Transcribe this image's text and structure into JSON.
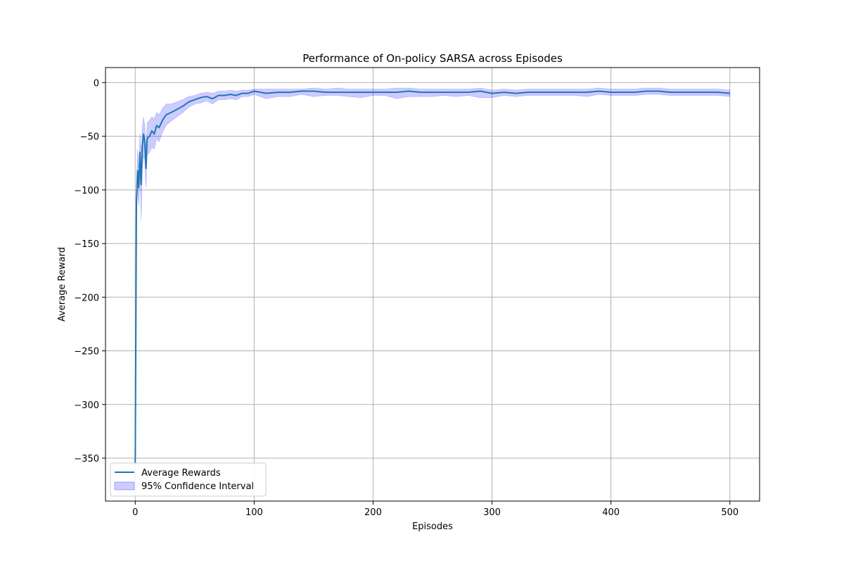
{
  "chart_data": {
    "type": "line",
    "title": "Performance of On-policy SARSA across Episodes",
    "xlabel": "Episodes",
    "ylabel": "Average Reward",
    "xlim": [
      -25,
      525
    ],
    "ylim": [
      -390,
      14
    ],
    "xticks": [
      0,
      100,
      200,
      300,
      400,
      500
    ],
    "yticks": [
      0,
      -50,
      -100,
      -150,
      -200,
      -250,
      -300,
      -350
    ],
    "ytick_labels": [
      "0",
      "−50",
      "−100",
      "−150",
      "−200",
      "−250",
      "−300",
      "−350"
    ],
    "grid": true,
    "legend_position": "lower-left",
    "series": [
      {
        "name": "Average Rewards",
        "color": "#1f77b4",
        "x": [
          0,
          1,
          2,
          3,
          4,
          5,
          6,
          7,
          8,
          9,
          10,
          12,
          14,
          16,
          18,
          20,
          23,
          26,
          30,
          35,
          40,
          45,
          50,
          55,
          60,
          65,
          70,
          75,
          80,
          85,
          90,
          95,
          100,
          110,
          120,
          130,
          140,
          150,
          160,
          170,
          180,
          190,
          200,
          210,
          220,
          230,
          240,
          250,
          260,
          270,
          280,
          290,
          300,
          310,
          320,
          330,
          340,
          350,
          360,
          370,
          380,
          390,
          400,
          410,
          420,
          430,
          440,
          450,
          460,
          470,
          480,
          490,
          500
        ],
        "values": [
          -355,
          -110,
          -82,
          -98,
          -65,
          -95,
          -60,
          -48,
          -55,
          -80,
          -52,
          -50,
          -45,
          -48,
          -40,
          -42,
          -35,
          -30,
          -28,
          -25,
          -22,
          -18,
          -16,
          -14,
          -13,
          -15,
          -12,
          -12,
          -11,
          -12,
          -10,
          -10,
          -8,
          -10,
          -9,
          -9,
          -8,
          -8,
          -9,
          -9,
          -9,
          -9,
          -9,
          -9,
          -9,
          -8,
          -9,
          -9,
          -9,
          -9,
          -9,
          -8,
          -10,
          -9,
          -10,
          -9,
          -9,
          -9,
          -9,
          -9,
          -9,
          -8,
          -9,
          -9,
          -9,
          -8,
          -8,
          -9,
          -9,
          -9,
          -9,
          -9,
          -10
        ]
      },
      {
        "name": "95% Confidence Interval",
        "color": "#0000ff",
        "type": "band",
        "x": [
          0,
          1,
          2,
          3,
          4,
          5,
          6,
          7,
          8,
          9,
          10,
          12,
          14,
          16,
          18,
          20,
          23,
          26,
          30,
          35,
          40,
          45,
          50,
          55,
          60,
          65,
          70,
          75,
          80,
          85,
          90,
          95,
          100,
          110,
          120,
          130,
          140,
          150,
          160,
          170,
          180,
          190,
          200,
          210,
          220,
          230,
          240,
          250,
          260,
          270,
          280,
          290,
          300,
          310,
          320,
          330,
          340,
          350,
          360,
          370,
          380,
          390,
          400,
          410,
          420,
          430,
          440,
          450,
          460,
          470,
          480,
          490,
          500
        ],
        "lower": [
          -357,
          -125,
          -100,
          -115,
          -85,
          -128,
          -80,
          -68,
          -72,
          -98,
          -68,
          -65,
          -60,
          -62,
          -52,
          -55,
          -46,
          -40,
          -36,
          -32,
          -28,
          -23,
          -20,
          -19,
          -17,
          -20,
          -16,
          -16,
          -15,
          -16,
          -13,
          -13,
          -11,
          -15,
          -13,
          -13,
          -11,
          -13,
          -12,
          -12,
          -13,
          -14,
          -12,
          -12,
          -15,
          -13,
          -13,
          -13,
          -12,
          -13,
          -12,
          -14,
          -14,
          -12,
          -13,
          -12,
          -12,
          -12,
          -12,
          -12,
          -13,
          -11,
          -12,
          -12,
          -12,
          -11,
          -11,
          -12,
          -12,
          -12,
          -12,
          -12,
          -13
        ],
        "upper": [
          -353,
          -95,
          -62,
          -80,
          -48,
          -65,
          -42,
          -32,
          -40,
          -62,
          -38,
          -35,
          -32,
          -34,
          -28,
          -30,
          -24,
          -20,
          -20,
          -18,
          -16,
          -13,
          -12,
          -10,
          -9,
          -10,
          -8,
          -8,
          -7,
          -8,
          -7,
          -7,
          -6,
          -6,
          -6,
          -6,
          -6,
          -5,
          -6,
          -5,
          -6,
          -6,
          -6,
          -6,
          -5,
          -5,
          -6,
          -6,
          -6,
          -6,
          -6,
          -5,
          -7,
          -6,
          -7,
          -6,
          -6,
          -6,
          -6,
          -6,
          -6,
          -5,
          -6,
          -6,
          -6,
          -5,
          -5,
          -6,
          -6,
          -6,
          -6,
          -6,
          -7
        ]
      }
    ]
  }
}
